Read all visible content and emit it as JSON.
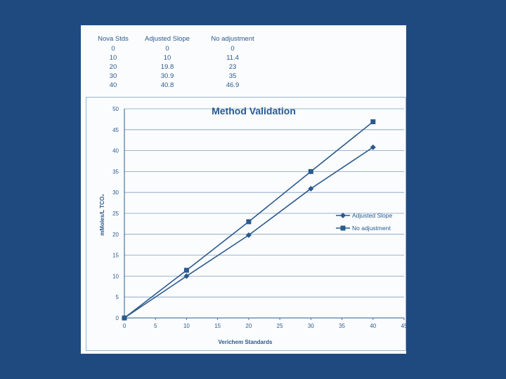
{
  "table": {
    "headers": [
      "Nova Stds",
      "Adjusted Slope",
      "No adjustment"
    ],
    "rows": [
      [
        "0",
        "0",
        "0"
      ],
      [
        "10",
        "10",
        "11.4"
      ],
      [
        "20",
        "19.8",
        "23"
      ],
      [
        "30",
        "30.9",
        "35"
      ],
      [
        "40",
        "40.8",
        "46.9"
      ]
    ]
  },
  "chart_data": {
    "type": "line",
    "title": "Method Validation",
    "xlabel": "Verichem Standards",
    "ylabel": "mMoles/L TCO₂",
    "xlim": [
      0,
      45
    ],
    "ylim": [
      0,
      50
    ],
    "x_ticks": [
      0,
      5,
      10,
      15,
      20,
      25,
      30,
      35,
      40,
      45
    ],
    "y_ticks": [
      0,
      5,
      10,
      15,
      20,
      25,
      30,
      35,
      40,
      45,
      50
    ],
    "grid": true,
    "legend_position": "right",
    "series": [
      {
        "name": "Adjusted Slope",
        "marker": "diamond",
        "x": [
          0,
          10,
          20,
          30,
          40
        ],
        "values": [
          0,
          10,
          19.8,
          30.9,
          40.8
        ]
      },
      {
        "name": "No adjustment",
        "marker": "square",
        "x": [
          0,
          10,
          20,
          30,
          40
        ],
        "values": [
          0,
          11.4,
          23,
          35,
          46.9
        ]
      }
    ]
  },
  "colors": {
    "background": "#1f4a80",
    "line": "#2a5a8e",
    "grid": "#7f9fc4"
  }
}
